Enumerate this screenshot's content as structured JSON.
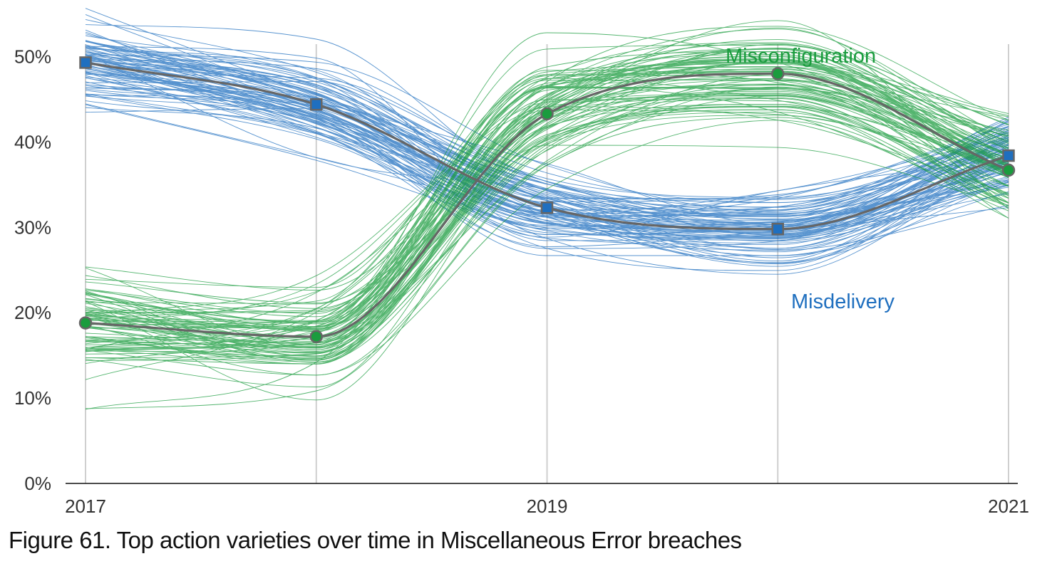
{
  "caption": "Figure 61. Top action varieties over time in Miscellaneous Error breaches",
  "chart_data": {
    "type": "line",
    "x": [
      2017,
      2018,
      2019,
      2020,
      2021
    ],
    "x_tick_labels": [
      "2017",
      "2019",
      "2021"
    ],
    "y_ticks": [
      0,
      10,
      20,
      30,
      40,
      50
    ],
    "y_tick_labels": [
      "0%",
      "10%",
      "20%",
      "30%",
      "40%",
      "50%"
    ],
    "ylim": [
      0,
      56
    ],
    "xlim": [
      2017,
      2021
    ],
    "grid": "vertical",
    "series": [
      {
        "name": "Misconfiguration",
        "label_position": "top-right",
        "color": "#1a9c3e",
        "marker": "circle",
        "values": [
          18.8,
          17.2,
          43.3,
          48.0,
          36.7
        ],
        "band_spread": 3.2
      },
      {
        "name": "Misdelivery",
        "label_position": "bottom-right",
        "color": "#1f6fbf",
        "marker": "square",
        "values": [
          49.3,
          44.4,
          32.3,
          29.8,
          38.4
        ],
        "band_spread": 2.6
      }
    ],
    "median_line_color": "#666666"
  }
}
